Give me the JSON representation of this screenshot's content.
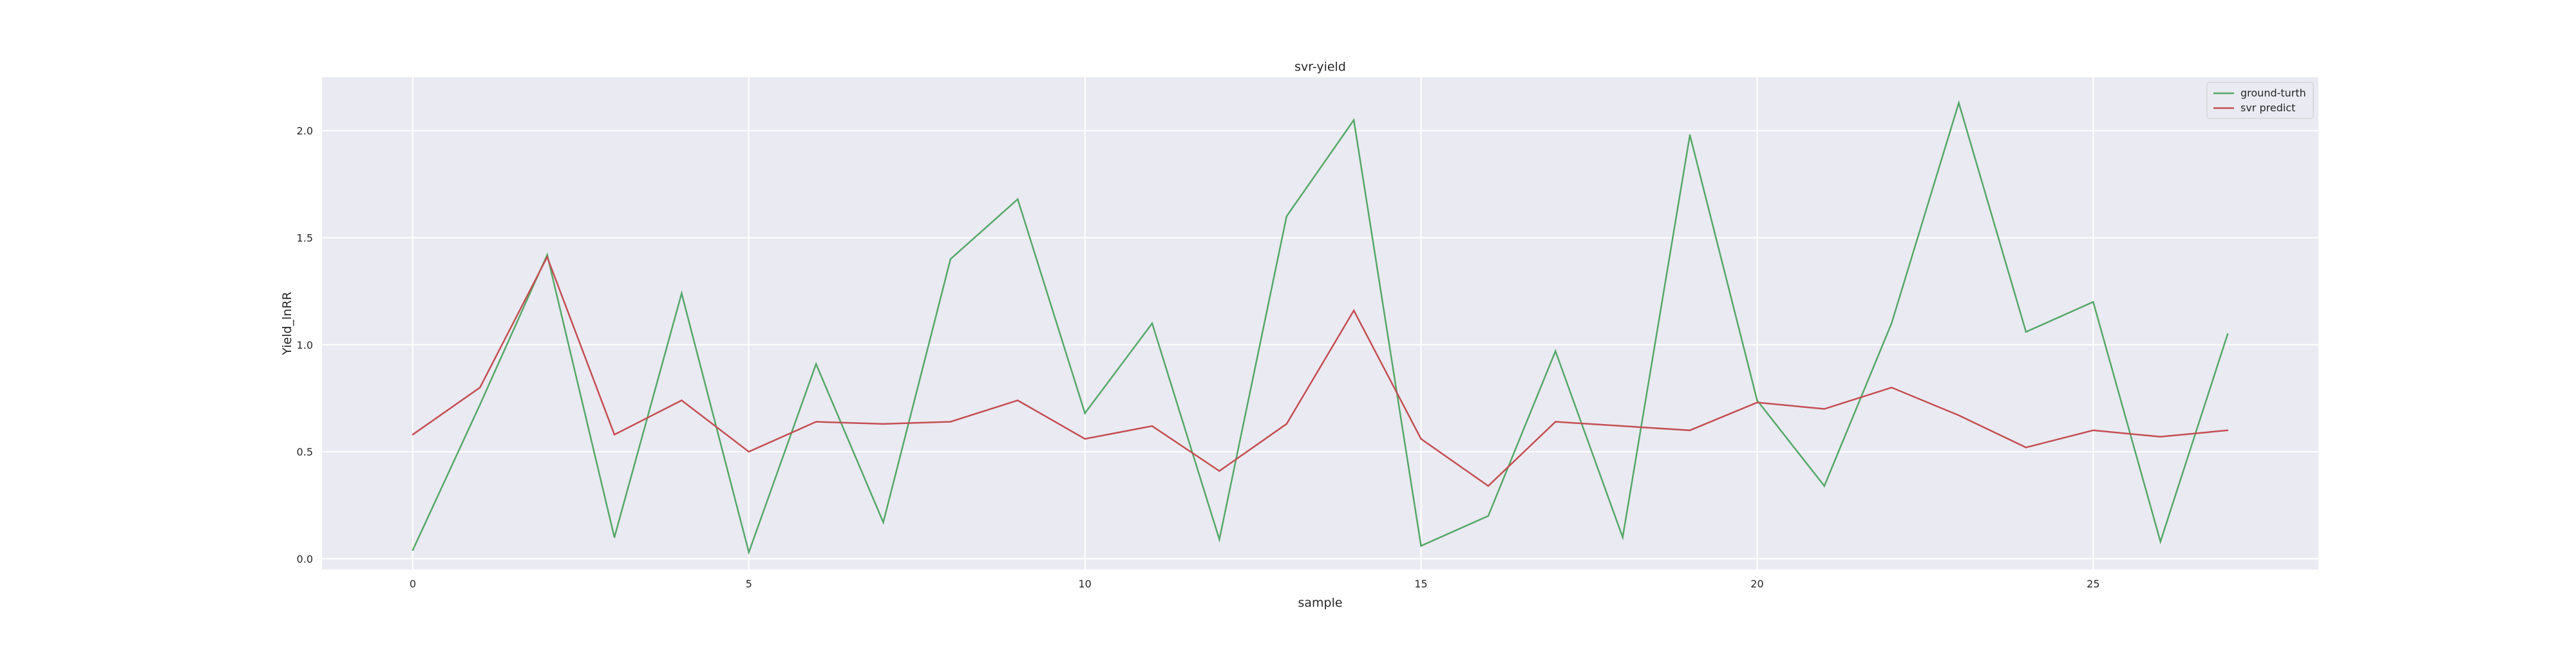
{
  "chart_data": {
    "type": "line",
    "title": "svr-yield",
    "xlabel": "sample",
    "ylabel": "Yield_lnRR",
    "xlim": [
      -1.35,
      28.35
    ],
    "ylim": [
      -0.05,
      2.25
    ],
    "xticks": [
      0,
      5,
      10,
      15,
      20,
      25
    ],
    "yticks": [
      0.0,
      0.5,
      1.0,
      1.5,
      2.0
    ],
    "grid": true,
    "legend_position": "top-right",
    "x": [
      0,
      1,
      2,
      3,
      4,
      5,
      6,
      7,
      8,
      9,
      10,
      11,
      12,
      13,
      14,
      15,
      16,
      17,
      18,
      19,
      20,
      21,
      22,
      23,
      24,
      25,
      26,
      27
    ],
    "series": [
      {
        "name": "ground-turth",
        "color": "#55a868",
        "values": [
          0.04,
          0.72,
          1.42,
          0.1,
          1.24,
          0.03,
          0.91,
          0.17,
          1.4,
          1.68,
          0.68,
          1.1,
          0.09,
          1.6,
          2.05,
          0.06,
          0.2,
          0.97,
          0.1,
          1.98,
          0.74,
          0.34,
          1.1,
          2.13,
          1.06,
          1.2,
          0.08,
          1.05
        ]
      },
      {
        "name": "svr predict",
        "color": "#c44e52",
        "values": [
          0.58,
          0.8,
          1.41,
          0.58,
          0.74,
          0.5,
          0.64,
          0.63,
          0.64,
          0.74,
          0.56,
          0.62,
          0.41,
          0.63,
          1.16,
          0.56,
          0.34,
          0.64,
          0.62,
          0.6,
          0.73,
          0.7,
          0.8,
          0.67,
          0.52,
          0.6,
          0.57,
          0.6
        ]
      }
    ]
  },
  "colors": {
    "plot_background": "#eaeaf2",
    "grid": "#ffffff",
    "text": "#262626"
  }
}
